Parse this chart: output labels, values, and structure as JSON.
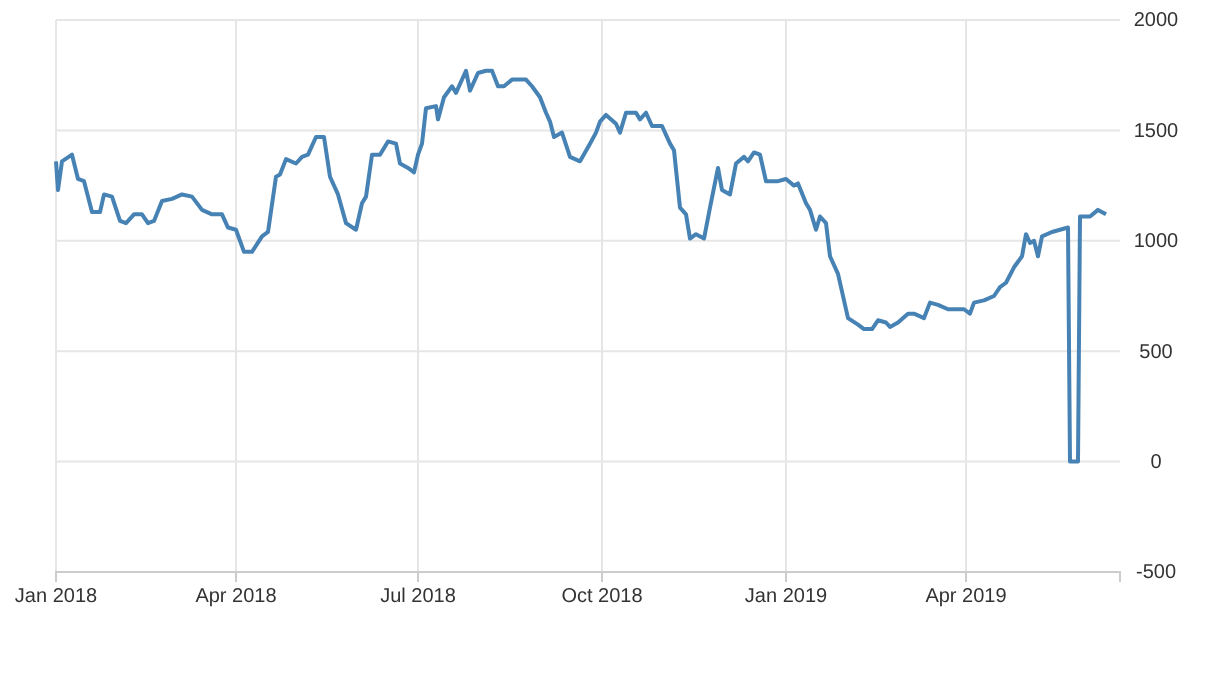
{
  "chart_data": {
    "type": "line",
    "x": [
      "2018-01-01",
      "2018-01-02",
      "2018-01-04",
      "2018-01-09",
      "2018-01-12",
      "2018-01-15",
      "2018-01-19",
      "2018-01-23",
      "2018-01-25",
      "2018-01-29",
      "2018-02-02",
      "2018-02-05",
      "2018-02-09",
      "2018-02-13",
      "2018-02-16",
      "2018-02-19",
      "2018-02-23",
      "2018-02-28",
      "2018-03-05",
      "2018-03-10",
      "2018-03-15",
      "2018-03-20",
      "2018-03-25",
      "2018-03-28",
      "2018-04-01",
      "2018-04-05",
      "2018-04-09",
      "2018-04-14",
      "2018-04-17",
      "2018-04-21",
      "2018-04-23",
      "2018-04-26",
      "2018-05-01",
      "2018-05-04",
      "2018-05-07",
      "2018-05-11",
      "2018-05-15",
      "2018-05-18",
      "2018-05-22",
      "2018-05-26",
      "2018-05-31",
      "2018-06-03",
      "2018-06-05",
      "2018-06-08",
      "2018-06-12",
      "2018-06-16",
      "2018-06-20",
      "2018-06-22",
      "2018-06-26",
      "2018-06-29",
      "2018-07-01",
      "2018-07-03",
      "2018-07-05",
      "2018-07-10",
      "2018-07-11",
      "2018-07-14",
      "2018-07-18",
      "2018-07-20",
      "2018-07-25",
      "2018-07-27",
      "2018-07-31",
      "2018-08-04",
      "2018-08-07",
      "2018-08-10",
      "2018-08-13",
      "2018-08-17",
      "2018-08-21",
      "2018-08-24",
      "2018-08-27",
      "2018-08-31",
      "2018-09-03",
      "2018-09-05",
      "2018-09-07",
      "2018-09-11",
      "2018-09-15",
      "2018-09-20",
      "2018-09-25",
      "2018-09-28",
      "2018-09-30",
      "2018-10-03",
      "2018-10-08",
      "2018-10-10",
      "2018-10-13",
      "2018-10-18",
      "2018-10-20",
      "2018-10-23",
      "2018-10-26",
      "2018-10-31",
      "2018-11-04",
      "2018-11-06",
      "2018-11-09",
      "2018-11-12",
      "2018-11-14",
      "2018-11-17",
      "2018-11-21",
      "2018-11-24",
      "2018-11-28",
      "2018-11-30",
      "2018-12-04",
      "2018-12-07",
      "2018-12-11",
      "2018-12-13",
      "2018-12-16",
      "2018-12-19",
      "2018-12-22",
      "2018-12-28",
      "2019-01-01",
      "2019-01-05",
      "2019-01-07",
      "2019-01-11",
      "2019-01-13",
      "2019-01-16",
      "2019-01-18",
      "2019-01-21",
      "2019-01-23",
      "2019-01-27",
      "2019-02-01",
      "2019-02-06",
      "2019-02-09",
      "2019-02-13",
      "2019-02-16",
      "2019-02-20",
      "2019-02-22",
      "2019-02-26",
      "2019-03-03",
      "2019-03-06",
      "2019-03-11",
      "2019-03-14",
      "2019-03-18",
      "2019-03-23",
      "2019-03-28",
      "2019-03-31",
      "2019-04-03",
      "2019-04-05",
      "2019-04-10",
      "2019-04-15",
      "2019-04-18",
      "2019-04-21",
      "2019-04-25",
      "2019-04-29",
      "2019-05-01",
      "2019-05-03",
      "2019-05-05",
      "2019-05-07",
      "2019-05-09",
      "2019-05-14",
      "2019-05-18",
      "2019-05-22",
      "2019-05-23",
      "2019-05-27",
      "2019-05-28",
      "2019-06-02",
      "2019-06-06",
      "2019-06-10"
    ],
    "series": [
      {
        "color": "#4682b4",
        "values": [
          1360,
          1230,
          1360,
          1390,
          1280,
          1270,
          1130,
          1130,
          1210,
          1200,
          1090,
          1080,
          1120,
          1120,
          1080,
          1090,
          1180,
          1190,
          1210,
          1200,
          1140,
          1120,
          1120,
          1060,
          1050,
          950,
          950,
          1020,
          1040,
          1290,
          1300,
          1370,
          1350,
          1380,
          1390,
          1470,
          1470,
          1290,
          1210,
          1080,
          1050,
          1170,
          1200,
          1390,
          1390,
          1450,
          1440,
          1350,
          1330,
          1310,
          1390,
          1440,
          1600,
          1610,
          1550,
          1650,
          1700,
          1670,
          1770,
          1680,
          1760,
          1770,
          1770,
          1700,
          1700,
          1730,
          1730,
          1730,
          1700,
          1650,
          1580,
          1540,
          1470,
          1490,
          1380,
          1360,
          1440,
          1490,
          1540,
          1570,
          1530,
          1490,
          1580,
          1580,
          1550,
          1580,
          1520,
          1520,
          1440,
          1410,
          1150,
          1120,
          1010,
          1030,
          1010,
          1150,
          1330,
          1230,
          1210,
          1350,
          1380,
          1360,
          1400,
          1390,
          1270,
          1270,
          1280,
          1250,
          1260,
          1170,
          1140,
          1050,
          1110,
          1080,
          930,
          850,
          650,
          620,
          600,
          600,
          640,
          630,
          610,
          630,
          670,
          670,
          650,
          720,
          710,
          690,
          690,
          690,
          670,
          720,
          730,
          750,
          790,
          810,
          880,
          930,
          1030,
          990,
          1000,
          930,
          1020,
          1040,
          1050,
          1060,
          0,
          0,
          1110,
          1110,
          1140,
          1120
        ]
      }
    ],
    "xlim": [
      "2018-01-01",
      "2019-06-17"
    ],
    "xticks": [
      {
        "value": "2018-01-01",
        "label": "Jan 2018"
      },
      {
        "value": "2018-04-01",
        "label": "Apr 2018"
      },
      {
        "value": "2018-07-01",
        "label": "Jul 2018"
      },
      {
        "value": "2018-10-01",
        "label": "Oct 2018"
      },
      {
        "value": "2019-01-01",
        "label": "Jan 2019"
      },
      {
        "value": "2019-04-01",
        "label": "Apr 2019"
      }
    ],
    "ylim": [
      -500,
      2000
    ],
    "yticks": [
      -500,
      0,
      500,
      1000,
      1500,
      2000
    ],
    "grid": true,
    "line_style": "solid",
    "marker": "none"
  }
}
